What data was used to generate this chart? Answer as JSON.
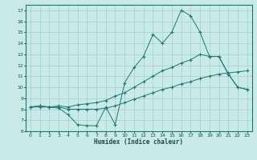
{
  "xlabel": "Humidex (Indice chaleur)",
  "x": [
    0,
    1,
    2,
    3,
    4,
    5,
    6,
    7,
    8,
    9,
    10,
    11,
    12,
    13,
    14,
    15,
    16,
    17,
    18,
    19,
    20,
    21,
    22,
    23
  ],
  "line1": [
    8.2,
    8.3,
    8.2,
    8.1,
    7.5,
    6.6,
    6.5,
    6.5,
    8.2,
    6.6,
    10.4,
    11.8,
    12.8,
    14.8,
    14.0,
    15.0,
    17.0,
    16.5,
    15.0,
    12.8,
    12.8,
    11.2,
    10.0,
    9.8
  ],
  "line2": [
    8.2,
    8.3,
    8.2,
    8.3,
    8.2,
    8.4,
    8.5,
    8.6,
    8.8,
    9.2,
    9.5,
    10.0,
    10.5,
    11.0,
    11.5,
    11.8,
    12.2,
    12.5,
    13.0,
    12.8,
    12.8,
    11.2,
    10.0,
    9.8
  ],
  "line3": [
    8.2,
    8.2,
    8.2,
    8.2,
    8.0,
    8.0,
    8.0,
    8.0,
    8.1,
    8.3,
    8.6,
    8.9,
    9.2,
    9.5,
    9.8,
    10.0,
    10.3,
    10.5,
    10.8,
    11.0,
    11.2,
    11.3,
    11.4,
    11.5
  ],
  "line_color": "#1a7a6e",
  "bg_color": "#c8eaea",
  "grid_color": "#a8cccc",
  "ylim": [
    6,
    17.5
  ],
  "xlim": [
    -0.5,
    23.5
  ],
  "yticks": [
    6,
    7,
    8,
    9,
    10,
    11,
    12,
    13,
    14,
    15,
    16,
    17
  ],
  "xticks": [
    0,
    1,
    2,
    3,
    4,
    5,
    6,
    7,
    8,
    9,
    10,
    11,
    12,
    13,
    14,
    15,
    16,
    17,
    18,
    19,
    20,
    21,
    22,
    23
  ]
}
